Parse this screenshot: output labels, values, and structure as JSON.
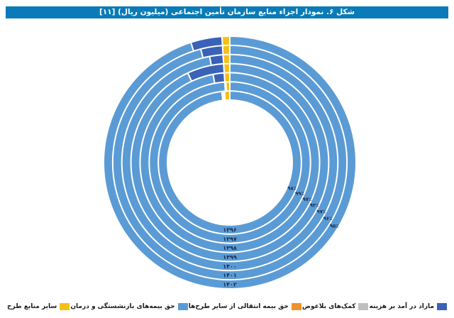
{
  "header": {
    "title": "شکل ۶. نمودار اجزاء منابع سازمان تأمین اجتماعی (میلیون ریال) [۱۱]"
  },
  "legend": {
    "items": [
      {
        "label": "مازاد در آمد بر هزینه",
        "color": "#3a62b6"
      },
      {
        "label": "کمک‌های بلاعوض",
        "color": "#bfbfbf"
      },
      {
        "label": "حق بیمه انتقالی از سایر طرح‌ها",
        "color": "#f0922b"
      },
      {
        "label": "حق بیمه‌های بازنشستگی و درمان",
        "color": "#5b9bd5"
      },
      {
        "label": "سایر منابع طرح",
        "color": "#f5c018"
      }
    ]
  },
  "chart_data": {
    "type": "multi-ring-donut",
    "title": "شکل ۶. نمودار اجزاء منابع سازمان تأمین اجتماعی (میلیون ریال) [۱۱]",
    "center": [
      324,
      229
    ],
    "inner_radius": 88,
    "outer_radius": 178,
    "ring_gap": 2,
    "series_names": [
      "حق بیمه‌های بازنشستگی و درمان",
      "مازاد در آمد بر هزینه",
      "کمک‌های بلاعوض",
      "حق بیمه انتقالی از سایر طرح‌ها",
      "سایر منابع طرح"
    ],
    "series_colors": [
      "#5b9bd5",
      "#3a62b6",
      "#bfbfbf",
      "#f0922b",
      "#f5c018"
    ],
    "rings": [
      {
        "year": "۱۳۹۶",
        "label_pct": "۹۸٪",
        "values": [
          98,
          0.0,
          0.3,
          0.3,
          1.2
        ]
      },
      {
        "year": "۱۳۹۷",
        "label_pct": "۹۹٪",
        "values": [
          99,
          0.0,
          0.1,
          0.1,
          0.8
        ]
      },
      {
        "year": "۱۳۹۸",
        "label_pct": "۹۷٪",
        "values": [
          97,
          2.0,
          0.0,
          0.0,
          1.0
        ]
      },
      {
        "year": "۱۳۹۹",
        "label_pct": "۹۳٪",
        "values": [
          93,
          6.0,
          0.0,
          0.0,
          1.0
        ]
      },
      {
        "year": "۱۴۰۰",
        "label_pct": "۹۷٪",
        "values": [
          97,
          2.0,
          0.0,
          0.0,
          1.0
        ]
      },
      {
        "year": "۱۴۰۱",
        "label_pct": "۹۶٪",
        "values": [
          96,
          3.0,
          0.0,
          0.0,
          1.0
        ]
      },
      {
        "year": "۱۴۰۲",
        "label_pct": "۹۵٪",
        "values": [
          95,
          4.0,
          0.0,
          0.0,
          1.0
        ]
      }
    ],
    "ring_order": "inner-to-outer",
    "start_angle": "12 o'clock, clockwise",
    "legend_position": "bottom"
  }
}
